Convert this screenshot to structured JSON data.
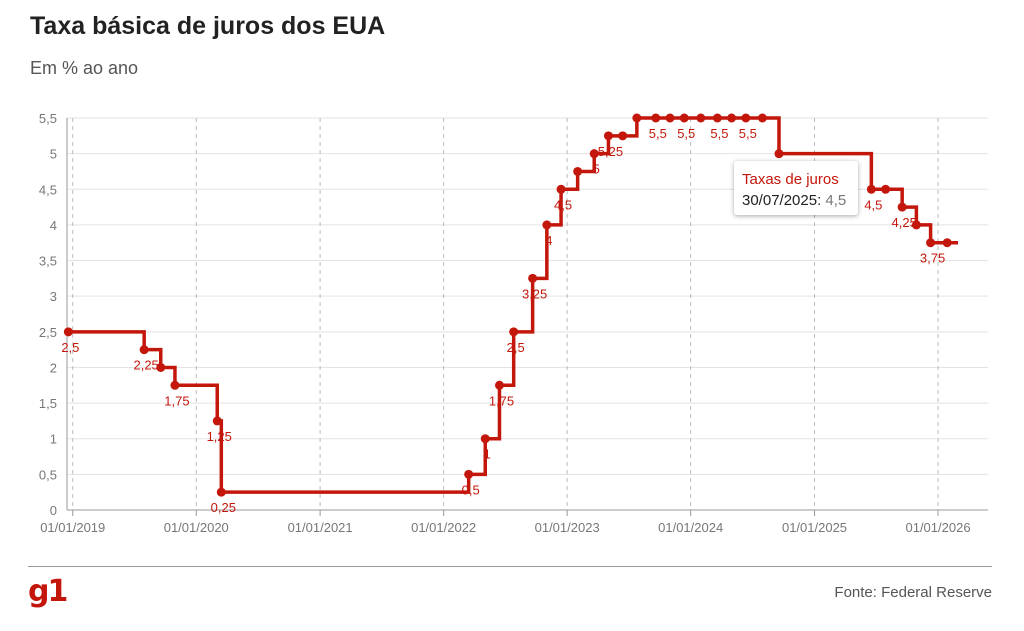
{
  "header": {
    "title": "Taxa básica de juros dos EUA",
    "subtitle": "Em % ao ano"
  },
  "footer": {
    "logo": "g1",
    "source": "Fonte: Federal Reserve"
  },
  "tooltip": {
    "series": "Taxas de juros",
    "date": "30/07/2025:",
    "value": "4,5"
  },
  "colors": {
    "line": "#c4170c",
    "grid": "#e3e3e3",
    "vgrid": "#bbbbbb"
  },
  "chart_data": {
    "type": "line",
    "step": true,
    "xlim": [
      "2018-12-15",
      "2026-03-01"
    ],
    "ylim": [
      0,
      5.5
    ],
    "yticks": [
      "0",
      "0,5",
      "1",
      "1,5",
      "2",
      "2,5",
      "3",
      "3,5",
      "4",
      "4,5",
      "5",
      "5,5"
    ],
    "xticks": [
      {
        "date": "2019-01-01",
        "label": "01/01/2019"
      },
      {
        "date": "2020-01-01",
        "label": "01/01/2020"
      },
      {
        "date": "2021-01-01",
        "label": "01/01/2021"
      },
      {
        "date": "2022-01-01",
        "label": "01/01/2022"
      },
      {
        "date": "2023-01-01",
        "label": "01/01/2023"
      },
      {
        "date": "2024-01-01",
        "label": "01/01/2024"
      },
      {
        "date": "2025-01-01",
        "label": "01/01/2025"
      },
      {
        "date": "2026-01-01",
        "label": "01/01/2026"
      }
    ],
    "grid": true,
    "series": [
      {
        "name": "Taxas de juros",
        "points": [
          {
            "date": "2018-12-19",
            "y": 2.5,
            "label": "2,5"
          },
          {
            "date": "2019-07-31",
            "y": 2.25,
            "label": "2,25"
          },
          {
            "date": "2019-09-18",
            "y": 2.0,
            "label": ""
          },
          {
            "date": "2019-10-30",
            "y": 1.75,
            "label": "1,75"
          },
          {
            "date": "2020-03-03",
            "y": 1.25,
            "label": "1,25"
          },
          {
            "date": "2020-03-15",
            "y": 0.25,
            "label": "0,25"
          },
          {
            "date": "2022-03-16",
            "y": 0.5,
            "label": "0,5"
          },
          {
            "date": "2022-05-04",
            "y": 1.0,
            "label": "1"
          },
          {
            "date": "2022-06-15",
            "y": 1.75,
            "label": "1,75"
          },
          {
            "date": "2022-07-27",
            "y": 2.5,
            "label": "2,5"
          },
          {
            "date": "2022-09-21",
            "y": 3.25,
            "label": "3,25"
          },
          {
            "date": "2022-11-02",
            "y": 4.0,
            "label": "4"
          },
          {
            "date": "2022-12-14",
            "y": 4.5,
            "label": "4,5"
          },
          {
            "date": "2023-02-01",
            "y": 4.75,
            "label": ""
          },
          {
            "date": "2023-03-22",
            "y": 5.0,
            "label": "5"
          },
          {
            "date": "2023-05-03",
            "y": 5.25,
            "label": "5,25"
          },
          {
            "date": "2023-06-14",
            "y": 5.25,
            "label": ""
          },
          {
            "date": "2023-07-26",
            "y": 5.5,
            "label": ""
          },
          {
            "date": "2023-09-20",
            "y": 5.5,
            "label": "5,5"
          },
          {
            "date": "2023-11-01",
            "y": 5.5,
            "label": ""
          },
          {
            "date": "2023-12-13",
            "y": 5.5,
            "label": "5,5"
          },
          {
            "date": "2024-01-31",
            "y": 5.5,
            "label": ""
          },
          {
            "date": "2024-03-20",
            "y": 5.5,
            "label": "5,5"
          },
          {
            "date": "2024-05-01",
            "y": 5.5,
            "label": ""
          },
          {
            "date": "2024-06-12",
            "y": 5.5,
            "label": "5,5"
          },
          {
            "date": "2024-07-31",
            "y": 5.5,
            "label": ""
          },
          {
            "date": "2024-09-18",
            "y": 5.0,
            "label": ""
          },
          {
            "date": "2025-06-18",
            "y": 4.5,
            "label": "4,5"
          },
          {
            "date": "2025-07-30",
            "y": 4.5,
            "label": ""
          },
          {
            "date": "2025-09-17",
            "y": 4.25,
            "label": "4,25"
          },
          {
            "date": "2025-10-29",
            "y": 4.0,
            "label": ""
          },
          {
            "date": "2025-12-10",
            "y": 3.75,
            "label": "3,75"
          },
          {
            "date": "2026-01-28",
            "y": 3.75,
            "label": ""
          },
          {
            "date": "2026-03-01",
            "y": 3.75,
            "label": ""
          }
        ]
      }
    ]
  }
}
